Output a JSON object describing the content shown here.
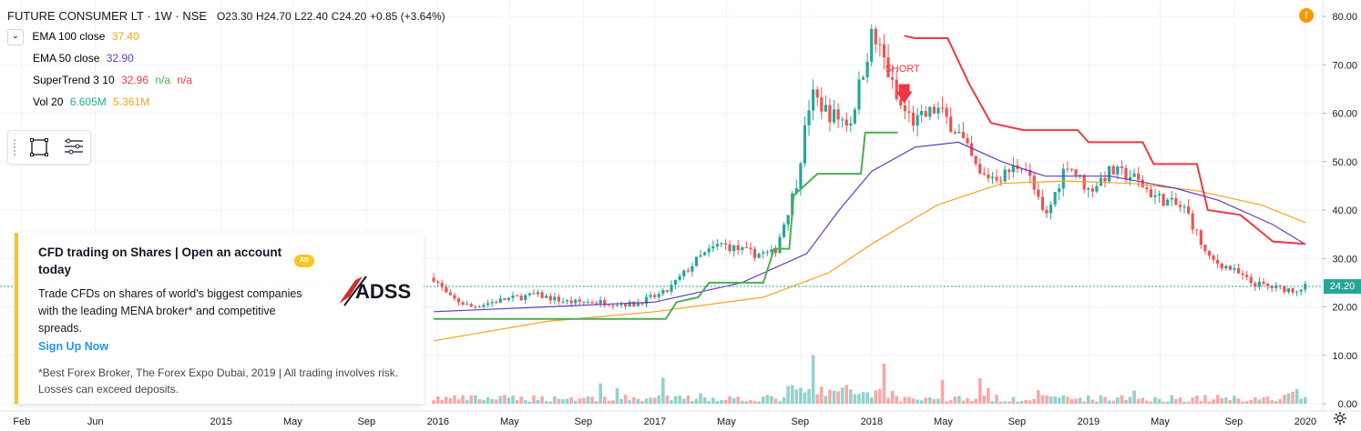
{
  "header": {
    "symbol": "FUTURE CONSUMER LT · 1W · NSE",
    "ohlc": {
      "o_label": "O",
      "o": "23.30",
      "h_label": "H",
      "h": "24.70",
      "l_label": "L",
      "l": "22.40",
      "c_label": "C",
      "c": "24.20",
      "change": "+0.85 (+3.64%)"
    }
  },
  "indicators": [
    {
      "name": "EMA 100 close",
      "value": "37.40",
      "color": "#f7a21b"
    },
    {
      "name": "EMA 50 close",
      "value": "32.90",
      "color": "#673ab7"
    },
    {
      "name": "SuperTrend 3 10",
      "value": "32.96",
      "value2": "n/a",
      "value3": "n/a",
      "color": "#f23645",
      "color2": "#4caf50"
    },
    {
      "name": "Vol 20",
      "value": "6.605M",
      "value2": "5.361M",
      "color": "#26a69a",
      "color2": "#f7a21b"
    }
  ],
  "ad": {
    "title": "CFD trading on Shares | Open an account today",
    "badge": "AD",
    "body": "Trade CFDs on shares of world's biggest companies with the leading MENA broker* and competitive spreads.",
    "link": "Sign Up Now",
    "disclaimer": "*Best Forex Broker, The Forex Expo Dubai, 2019 | All trading involves risk. Losses can exceed deposits.",
    "logo_text": "ADSS"
  },
  "annotation": {
    "label": "SHORT"
  },
  "last_price": "24.20",
  "alert_symbol": "!",
  "chart_data": {
    "type": "candlestick",
    "title": "FUTURE CONSUMER LT · 1W · NSE",
    "y_ticks": [
      "0.00",
      "10.00",
      "20.00",
      "30.00",
      "40.00",
      "50.00",
      "60.00",
      "70.00",
      "80.00"
    ],
    "ylim": [
      0,
      82
    ],
    "x_ticks": [
      {
        "label": "Feb",
        "t": 2014.08
      },
      {
        "label": "Jun",
        "t": 2014.42
      },
      {
        "label": "2015",
        "t": 2015.0
      },
      {
        "label": "May",
        "t": 2015.33
      },
      {
        "label": "Sep",
        "t": 2015.67
      },
      {
        "label": "2016",
        "t": 2016.0
      },
      {
        "label": "May",
        "t": 2016.33
      },
      {
        "label": "Sep",
        "t": 2016.67
      },
      {
        "label": "2017",
        "t": 2017.0
      },
      {
        "label": "May",
        "t": 2017.33
      },
      {
        "label": "Sep",
        "t": 2017.67
      },
      {
        "label": "2018",
        "t": 2018.0
      },
      {
        "label": "May",
        "t": 2018.33
      },
      {
        "label": "Sep",
        "t": 2018.67
      },
      {
        "label": "2019",
        "t": 2019.0
      },
      {
        "label": "May",
        "t": 2019.33
      },
      {
        "label": "Sep",
        "t": 2019.67
      },
      {
        "label": "2020",
        "t": 2020.0
      }
    ],
    "xlim": [
      2013.98,
      2020.08
    ],
    "price_path": [
      [
        2015.98,
        26
      ],
      [
        2016.05,
        22
      ],
      [
        2016.15,
        20
      ],
      [
        2016.3,
        21.5
      ],
      [
        2016.45,
        22.5
      ],
      [
        2016.6,
        21
      ],
      [
        2016.75,
        21
      ],
      [
        2016.9,
        20.5
      ],
      [
        2017.05,
        23
      ],
      [
        2017.2,
        30
      ],
      [
        2017.3,
        33
      ],
      [
        2017.45,
        31
      ],
      [
        2017.55,
        31
      ],
      [
        2017.65,
        45
      ],
      [
        2017.72,
        64
      ],
      [
        2017.8,
        60
      ],
      [
        2017.9,
        58
      ],
      [
        2018.0,
        76
      ],
      [
        2018.05,
        72
      ],
      [
        2018.12,
        62
      ],
      [
        2018.2,
        58
      ],
      [
        2018.3,
        61
      ],
      [
        2018.4,
        56
      ],
      [
        2018.5,
        47
      ],
      [
        2018.6,
        47
      ],
      [
        2018.7,
        50
      ],
      [
        2018.8,
        38
      ],
      [
        2018.9,
        50
      ],
      [
        2019.0,
        44
      ],
      [
        2019.1,
        48
      ],
      [
        2019.2,
        47
      ],
      [
        2019.3,
        43
      ],
      [
        2019.45,
        40
      ],
      [
        2019.55,
        30
      ],
      [
        2019.65,
        28
      ],
      [
        2019.75,
        25
      ],
      [
        2019.85,
        24
      ],
      [
        2019.95,
        23.5
      ],
      [
        2020.0,
        24.2
      ]
    ],
    "volume_max_m": 20,
    "series": [
      {
        "name": "EMA 100 close",
        "color": "#f7a21b",
        "values": [
          [
            2015.98,
            13
          ],
          [
            2016.5,
            17
          ],
          [
            2017.0,
            19
          ],
          [
            2017.5,
            22
          ],
          [
            2017.8,
            27
          ],
          [
            2018.0,
            33
          ],
          [
            2018.3,
            41
          ],
          [
            2018.6,
            45.5
          ],
          [
            2018.9,
            46
          ],
          [
            2019.2,
            45.5
          ],
          [
            2019.5,
            44
          ],
          [
            2019.8,
            41
          ],
          [
            2020.0,
            37.4
          ]
        ]
      },
      {
        "name": "EMA 50 close",
        "color": "#673ab7",
        "values": [
          [
            2015.98,
            19
          ],
          [
            2016.5,
            20
          ],
          [
            2017.0,
            21
          ],
          [
            2017.4,
            25
          ],
          [
            2017.7,
            31
          ],
          [
            2017.85,
            40
          ],
          [
            2018.0,
            48
          ],
          [
            2018.2,
            53
          ],
          [
            2018.4,
            54
          ],
          [
            2018.6,
            50
          ],
          [
            2018.8,
            47
          ],
          [
            2019.1,
            47
          ],
          [
            2019.4,
            44.5
          ],
          [
            2019.6,
            42
          ],
          [
            2019.85,
            37
          ],
          [
            2020.0,
            32.9
          ]
        ]
      },
      {
        "name": "SuperTrend up",
        "color": "#4caf50",
        "values": [
          [
            2015.98,
            17.5
          ],
          [
            2016.5,
            17.5
          ],
          [
            2017.05,
            17.5
          ],
          [
            2017.1,
            21
          ],
          [
            2017.2,
            22
          ],
          [
            2017.25,
            25
          ],
          [
            2017.5,
            25
          ],
          [
            2017.55,
            32
          ],
          [
            2017.62,
            32
          ],
          [
            2017.64,
            43
          ],
          [
            2017.75,
            47.5
          ],
          [
            2017.95,
            47.5
          ],
          [
            2017.97,
            56
          ],
          [
            2018.12,
            56
          ]
        ]
      },
      {
        "name": "SuperTrend down",
        "color": "#f23645",
        "values": [
          [
            2018.15,
            76
          ],
          [
            2018.2,
            75.5
          ],
          [
            2018.35,
            75.5
          ],
          [
            2018.45,
            66
          ],
          [
            2018.55,
            58
          ],
          [
            2018.7,
            56.5
          ],
          [
            2018.95,
            56.5
          ],
          [
            2019.0,
            54
          ],
          [
            2019.25,
            54
          ],
          [
            2019.3,
            49.5
          ],
          [
            2019.5,
            49.5
          ],
          [
            2019.55,
            40
          ],
          [
            2019.7,
            39
          ],
          [
            2019.85,
            33.5
          ],
          [
            2020.0,
            33
          ]
        ]
      }
    ]
  }
}
